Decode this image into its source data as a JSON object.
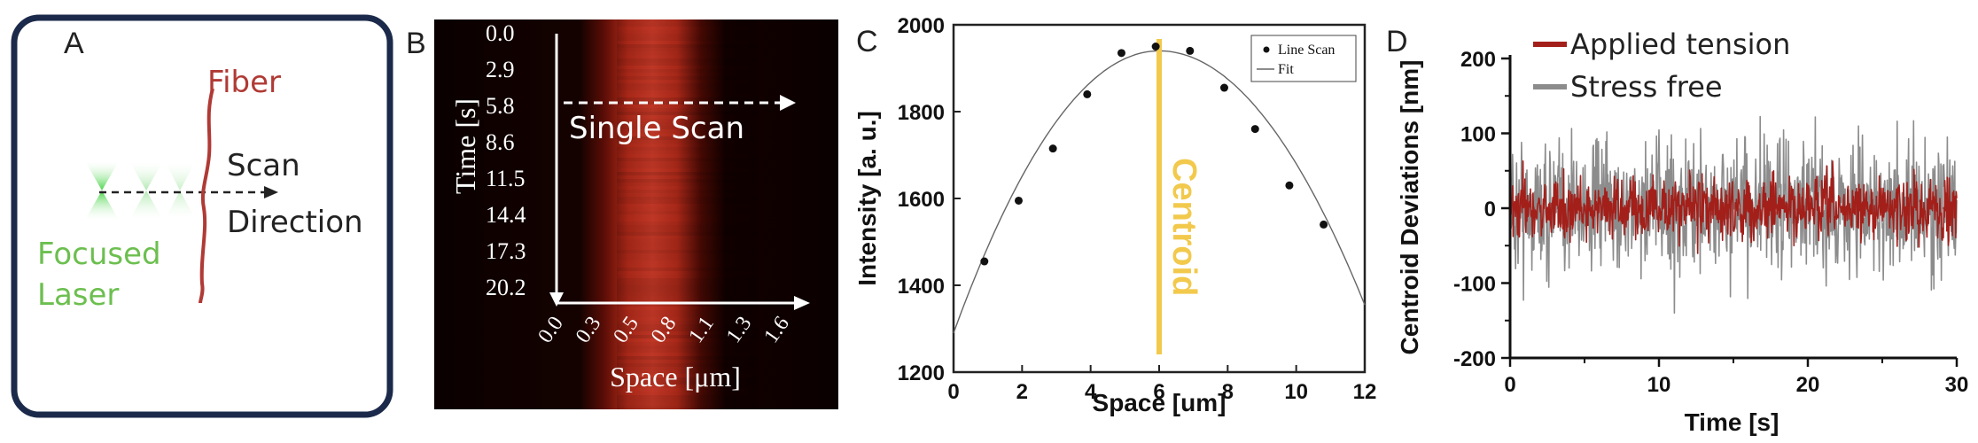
{
  "colors": {
    "navy": "#1b2a4a",
    "fiber_red": "#b03a35",
    "laser_green": "#6cbf4f",
    "centroid_yellow": "#f2c94c",
    "tension_red": "#a31f1a",
    "stress_gray": "#8c8c8c",
    "kymo_bg": "#0a0000"
  },
  "panel_a": {
    "letter": "A",
    "fiber_label": "Fiber",
    "scan_label": "Scan",
    "direction_label": "Direction",
    "laser_label_1": "Focused",
    "laser_label_2": "Laser",
    "icons": [
      "laser-cone-icon",
      "dashed-arrow-icon",
      "fiber-line-icon"
    ]
  },
  "panel_b": {
    "letter": "B",
    "ylabel": "Time [s]",
    "xlabel": "Space [μm]",
    "time_ticks": [
      "0.0",
      "2.9",
      "5.8",
      "8.6",
      "11.5",
      "14.4",
      "17.3",
      "20.2"
    ],
    "space_ticks": [
      "0.0",
      "0.3",
      "0.5",
      "0.8",
      "1.1",
      "1.3",
      "1.6"
    ],
    "scan_label": "Single Scan"
  },
  "chart_data": [
    {
      "type": "scatter",
      "panel": "C",
      "title": "",
      "xlabel": "Space [um]",
      "ylabel": "Intensity [a. u.]",
      "xlim": [
        0,
        12
      ],
      "ylim": [
        1200,
        2000
      ],
      "xticks": [
        0,
        2,
        4,
        6,
        8,
        10,
        12
      ],
      "yticks": [
        1200,
        1400,
        1600,
        1800,
        2000
      ],
      "series": [
        {
          "name": "Line Scan",
          "x": [
            0.9,
            1.9,
            2.9,
            3.9,
            4.9,
            5.9,
            6.9,
            7.9,
            8.8,
            9.8,
            10.8
          ],
          "y": [
            1455,
            1595,
            1715,
            1840,
            1935,
            1950,
            1940,
            1855,
            1760,
            1630,
            1540
          ]
        },
        {
          "name": "Fit",
          "peak_x": 6.0,
          "peak_y": 1940,
          "start_y": 1290,
          "end_y": 1355
        }
      ],
      "annotations": [
        {
          "text": "Centroid",
          "x": 6.0
        }
      ],
      "legend": "top-right"
    },
    {
      "type": "line",
      "panel": "D",
      "xlabel": "Time [s]",
      "ylabel": "Centroid Deviations [nm]",
      "xlim": [
        0,
        30
      ],
      "ylim": [
        -200,
        200
      ],
      "xticks": [
        0,
        10,
        20,
        30
      ],
      "yticks": [
        -200,
        -100,
        0,
        100,
        200
      ],
      "series": [
        {
          "name": "Applied tension",
          "spread_nm": 45
        },
        {
          "name": "Stress free",
          "spread_nm": 100
        }
      ],
      "legend": "top-left"
    }
  ]
}
